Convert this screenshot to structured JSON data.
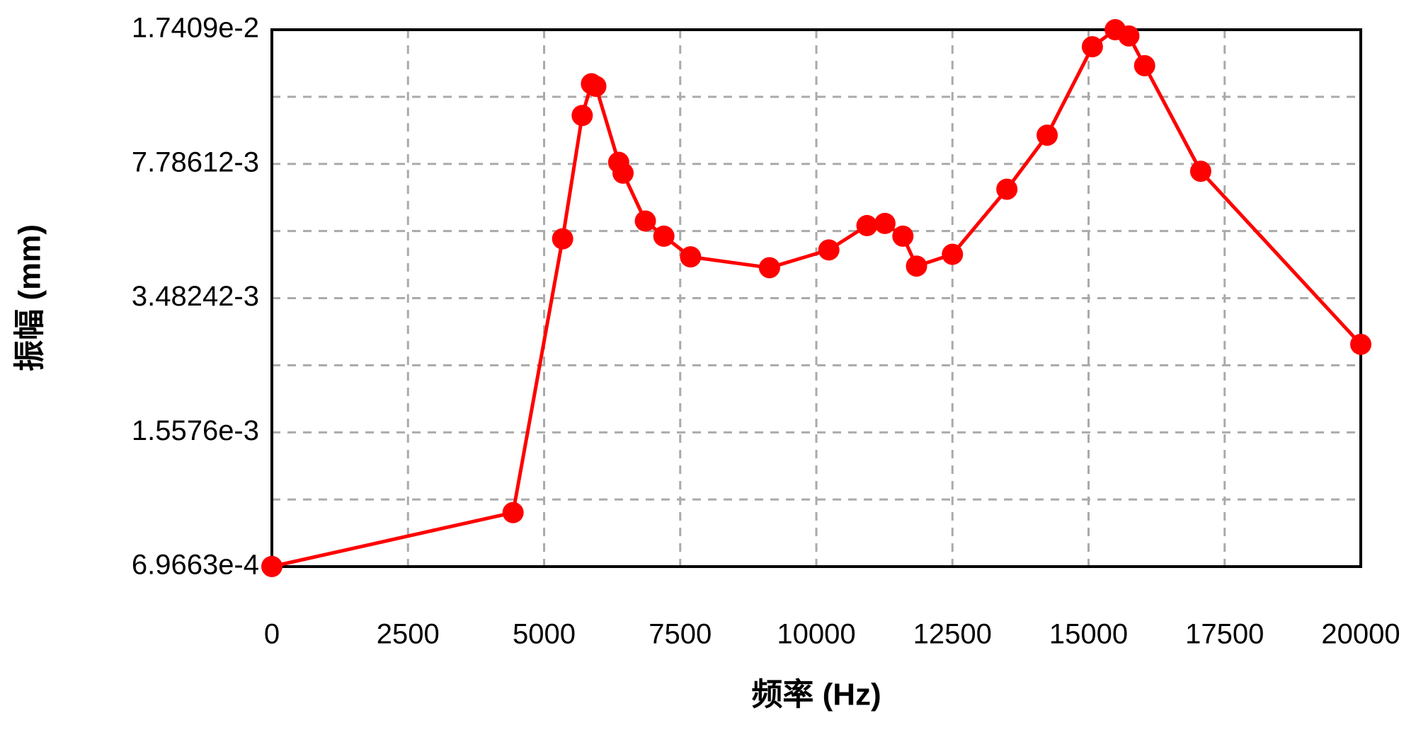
{
  "chart_data": {
    "type": "line",
    "x_label": "频率 (Hz)",
    "y_label": "振幅 (mm)",
    "log_y": true,
    "grid": true,
    "xlim": [
      0,
      20000
    ],
    "xticks": [
      0,
      2500,
      5000,
      7500,
      10000,
      12500,
      15000,
      17500,
      20000
    ],
    "ylim": [
      0.00069663,
      0.017409
    ],
    "yticks": [
      {
        "value": 0.00069663,
        "label": "6.9663e-4"
      },
      {
        "value": 0.0015576,
        "label": "1.5576e-3"
      },
      {
        "value": 0.00348242,
        "label": "3.48242-3"
      },
      {
        "value": 0.00778612,
        "label": "7.78612-3"
      },
      {
        "value": 0.017409,
        "label": "1.7409e-2"
      }
    ],
    "series": [
      {
        "color": "#ff0000",
        "x": [
          0,
          4430,
          5340,
          5700,
          5870,
          5950,
          6370,
          6450,
          6860,
          7200,
          7690,
          9140,
          10230,
          10930,
          11260,
          11590,
          11840,
          12500,
          13500,
          14240,
          15070,
          15490,
          15740,
          16030,
          17060,
          20000
        ],
        "values": [
          0.000697,
          0.000963,
          0.00497,
          0.01041,
          0.01259,
          0.0124,
          0.00786,
          0.00737,
          0.00553,
          0.00505,
          0.00446,
          0.00418,
          0.00465,
          0.00538,
          0.00545,
          0.00505,
          0.00422,
          0.00453,
          0.00669,
          0.00925,
          0.01572,
          0.01741,
          0.01677,
          0.01403,
          0.00745,
          0.00264
        ]
      }
    ]
  }
}
